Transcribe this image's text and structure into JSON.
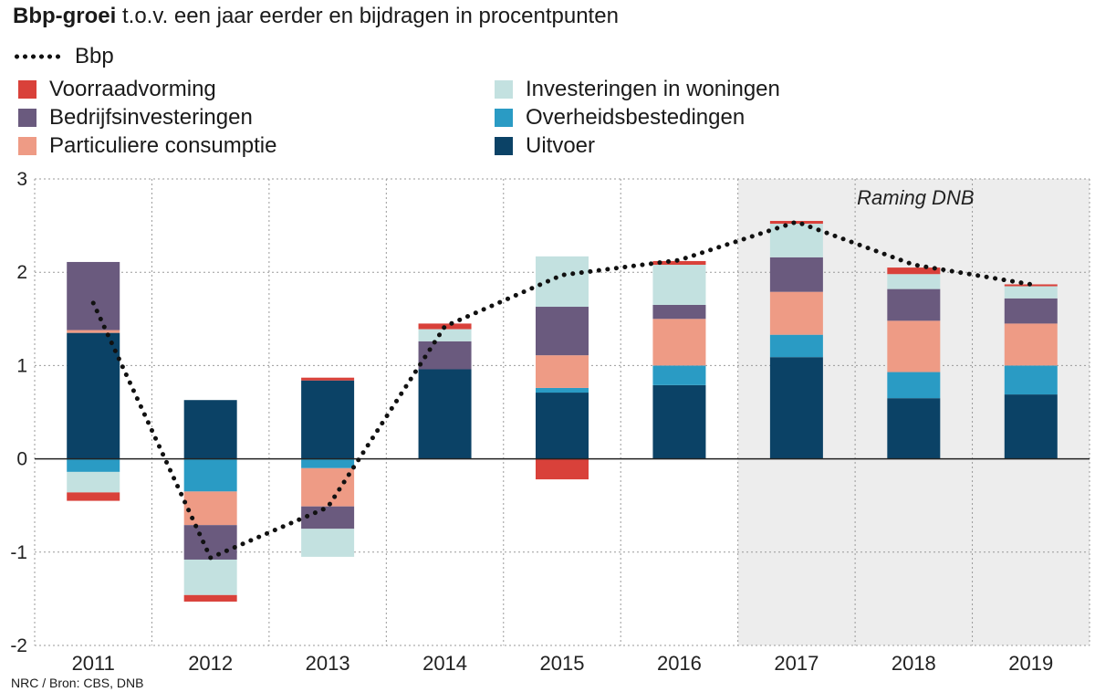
{
  "title": {
    "bold": "Bbp-groei",
    "rest": " t.o.v. een jaar eerder en bijdragen in procentpunten"
  },
  "legend": {
    "line": {
      "label": "Bbp"
    },
    "items": [
      {
        "key": "voorraad",
        "label": "Voorraadvorming",
        "color": "#d9413a"
      },
      {
        "key": "bedrijf",
        "label": "Bedrijfsinvesteringen",
        "color": "#6a5a7e"
      },
      {
        "key": "consumptie",
        "label": "Particuliere consumptie",
        "color": "#ee9b85"
      },
      {
        "key": "woningen",
        "label": "Investeringen in woningen",
        "color": "#c3e1e0"
      },
      {
        "key": "overheid",
        "label": "Overheidsbestedingen",
        "color": "#2a9bc4"
      },
      {
        "key": "uitvoer",
        "label": "Uitvoer",
        "color": "#0b4266"
      }
    ]
  },
  "source": "NRC / Bron: CBS, DNB",
  "chart_data": {
    "type": "bar",
    "stacked": true,
    "categories": [
      "2011",
      "2012",
      "2013",
      "2014",
      "2015",
      "2016",
      "2017",
      "2018",
      "2019"
    ],
    "ylim": [
      -2,
      3
    ],
    "yticks": [
      "3",
      "2",
      "1",
      "0",
      "-1",
      "-2"
    ],
    "grid": true,
    "forecast": {
      "label": "Raming DNB",
      "from": "2017",
      "to": "2019"
    },
    "series": [
      {
        "name": "Uitvoer",
        "key": "uitvoer",
        "values": [
          1.35,
          0.63,
          0.84,
          0.96,
          0.71,
          0.79,
          1.09,
          0.65,
          0.69
        ]
      },
      {
        "name": "Overheidsbestedingen",
        "key": "overheid",
        "values": [
          -0.14,
          -0.35,
          -0.1,
          0.0,
          0.05,
          0.21,
          0.24,
          0.28,
          0.31
        ]
      },
      {
        "name": "Particuliere consumptie",
        "key": "consumptie",
        "values": [
          0.03,
          -0.36,
          -0.41,
          0.0,
          0.35,
          0.5,
          0.46,
          0.55,
          0.45
        ]
      },
      {
        "name": "Bedrijfsinvesteringen",
        "key": "bedrijf",
        "values": [
          0.73,
          -0.37,
          -0.24,
          0.3,
          0.52,
          0.15,
          0.37,
          0.34,
          0.27
        ]
      },
      {
        "name": "Investeringen in woningen",
        "key": "woningen",
        "values": [
          -0.22,
          -0.38,
          -0.3,
          0.13,
          0.54,
          0.43,
          0.36,
          0.16,
          0.13
        ]
      },
      {
        "name": "Voorraadvorming",
        "key": "voorraad",
        "values": [
          -0.09,
          -0.07,
          0.03,
          0.06,
          -0.22,
          0.04,
          0.03,
          0.07,
          0.02
        ]
      }
    ],
    "line": {
      "name": "Bbp",
      "values": [
        1.67,
        -1.06,
        -0.52,
        1.42,
        1.97,
        2.13,
        2.54,
        2.08,
        1.87
      ]
    }
  }
}
